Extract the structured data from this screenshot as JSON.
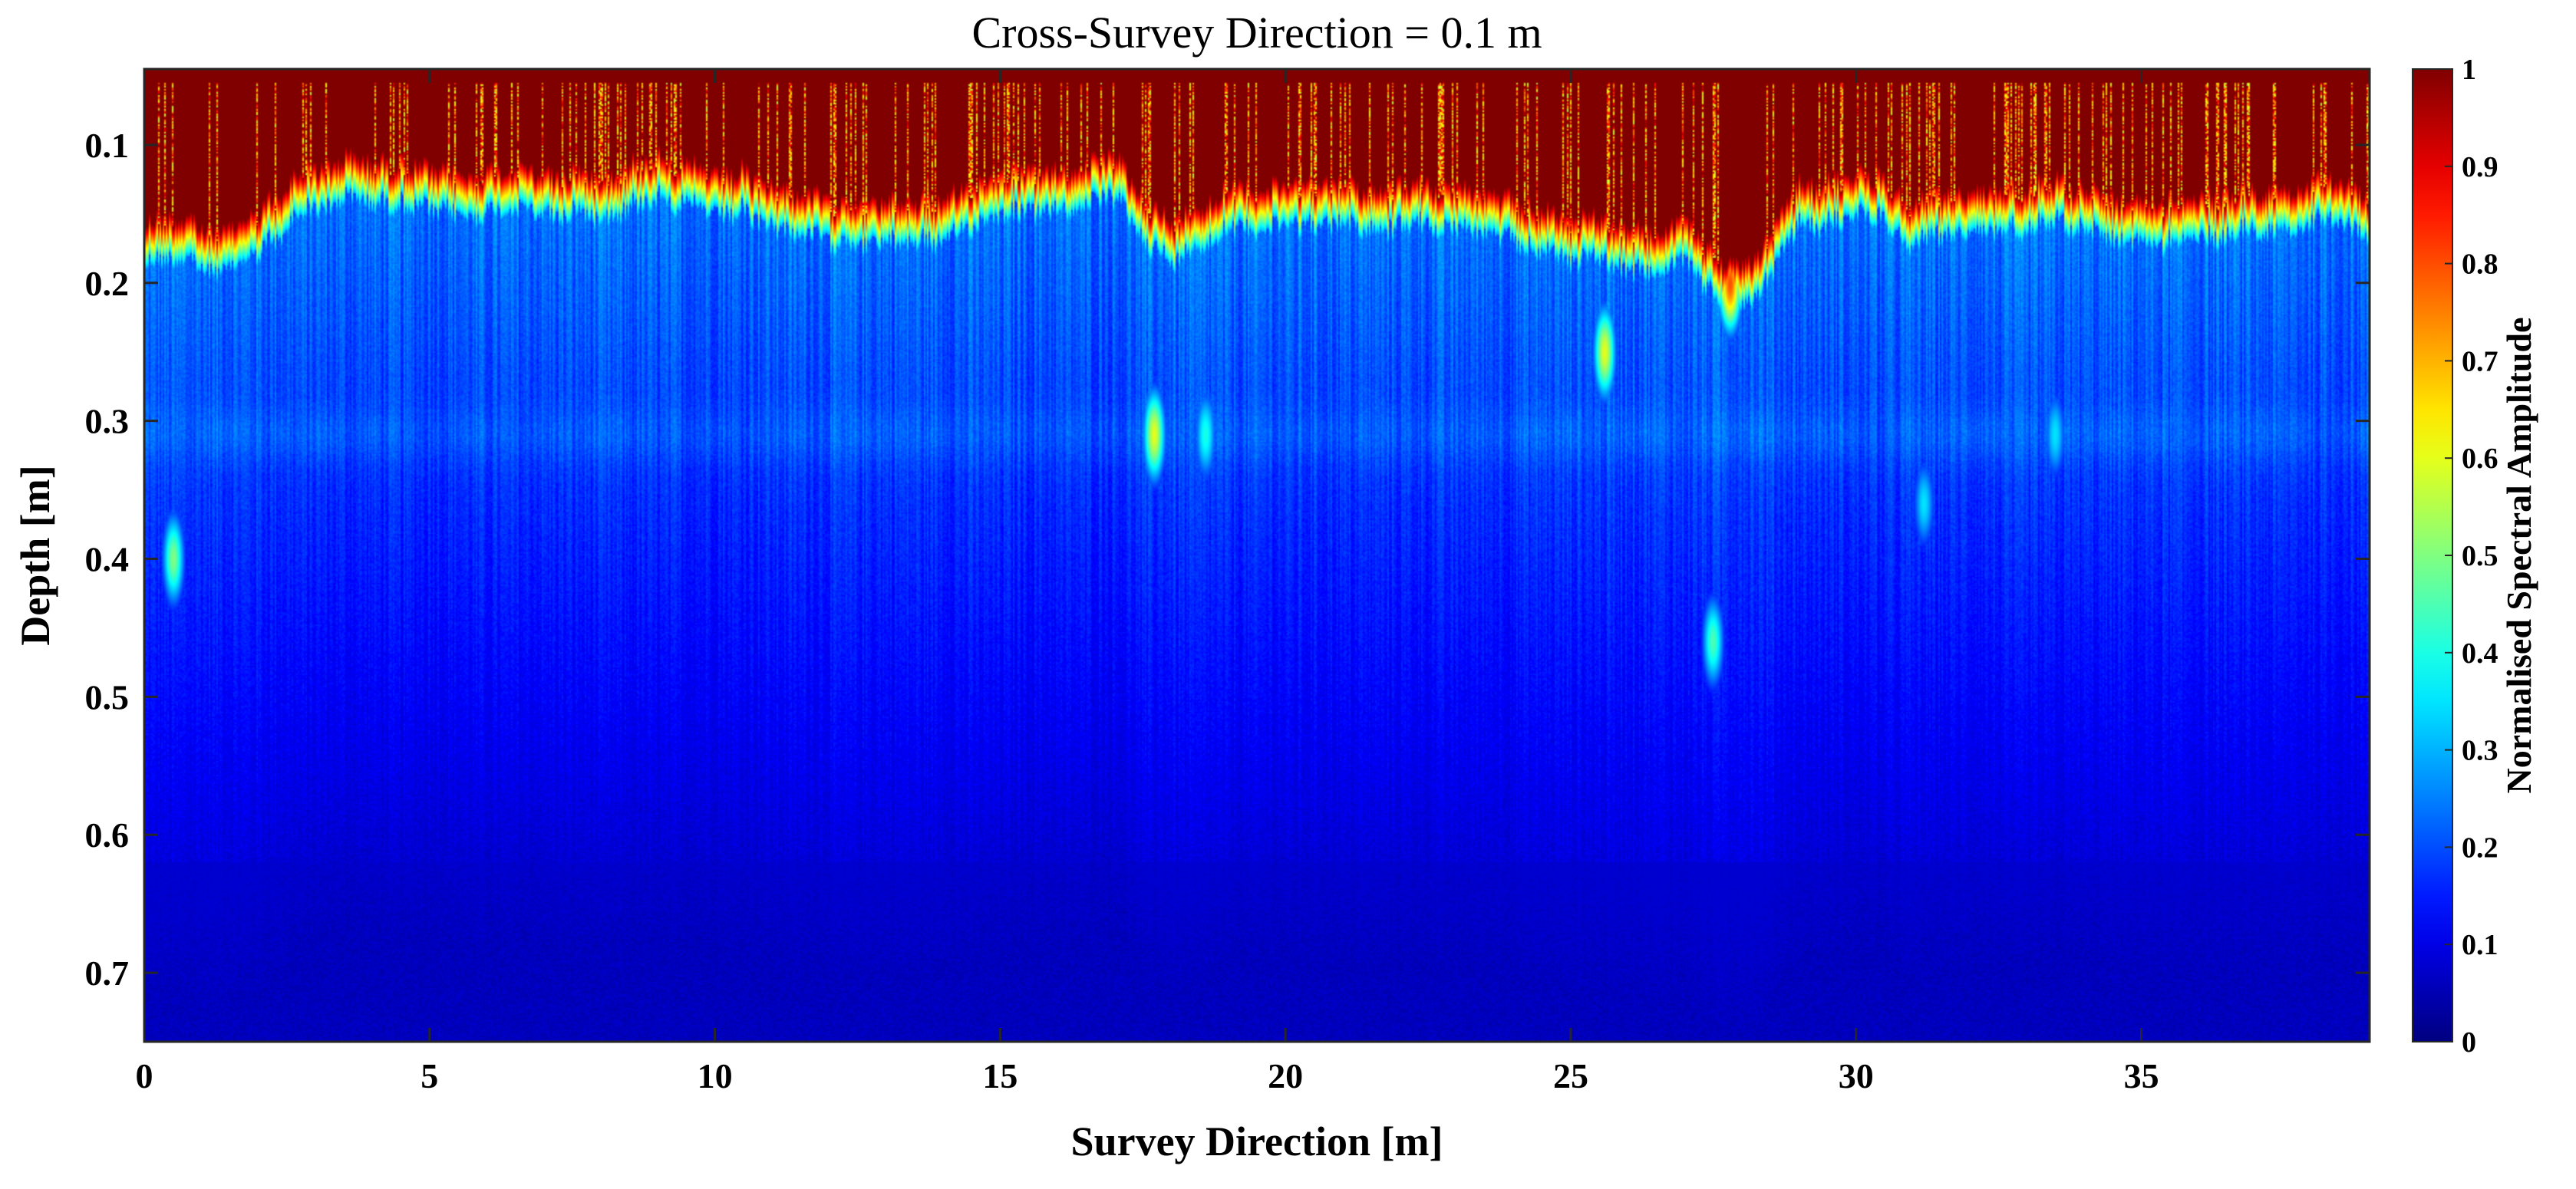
{
  "chart_data": {
    "type": "heatmap",
    "title": "Cross-Survey Direction = 0.1 m",
    "xlabel": "Survey Direction [m]",
    "ylabel": "Depth [m]",
    "xlim": [
      0,
      39
    ],
    "ylim": [
      0.045,
      0.75
    ],
    "y_direction": "reversed",
    "x_ticks": [
      0,
      5,
      10,
      15,
      20,
      25,
      30,
      35
    ],
    "x_tick_labels": [
      "0",
      "5",
      "10",
      "15",
      "20",
      "25",
      "30",
      "35"
    ],
    "y_ticks": [
      0.1,
      0.2,
      0.3,
      0.4,
      0.5,
      0.6,
      0.7
    ],
    "y_tick_labels": [
      "0.1",
      "0.2",
      "0.3",
      "0.4",
      "0.5",
      "0.6",
      "0.7"
    ],
    "colormap": "jet",
    "colorbar": {
      "label": "Normalised Spectral Amplitude",
      "range": [
        0,
        1
      ],
      "ticks": [
        0,
        0.1,
        0.2,
        0.3,
        0.4,
        0.5,
        0.6,
        0.7,
        0.8,
        0.9,
        1
      ],
      "tick_labels": [
        "0",
        "0.1",
        "0.2",
        "0.3",
        "0.4",
        "0.5",
        "0.6",
        "0.7",
        "0.8",
        "0.9",
        "1"
      ]
    },
    "surface_layer_bottom_depth": [
      [
        0,
        0.16
      ],
      [
        1,
        0.17
      ],
      [
        2,
        0.16
      ],
      [
        3,
        0.12
      ],
      [
        4,
        0.12
      ],
      [
        5,
        0.13
      ],
      [
        6,
        0.13
      ],
      [
        7,
        0.13
      ],
      [
        8,
        0.13
      ],
      [
        9,
        0.12
      ],
      [
        10,
        0.13
      ],
      [
        11,
        0.14
      ],
      [
        12,
        0.15
      ],
      [
        13,
        0.15
      ],
      [
        14,
        0.15
      ],
      [
        15,
        0.13
      ],
      [
        16,
        0.13
      ],
      [
        17,
        0.12
      ],
      [
        18,
        0.17
      ],
      [
        19,
        0.14
      ],
      [
        20,
        0.14
      ],
      [
        21,
        0.14
      ],
      [
        22,
        0.14
      ],
      [
        23,
        0.14
      ],
      [
        24,
        0.15
      ],
      [
        25,
        0.16
      ],
      [
        26,
        0.17
      ],
      [
        27,
        0.17
      ],
      [
        28,
        0.2
      ],
      [
        29,
        0.14
      ],
      [
        30,
        0.13
      ],
      [
        31,
        0.15
      ],
      [
        32,
        0.14
      ],
      [
        33,
        0.14
      ],
      [
        34,
        0.14
      ],
      [
        35,
        0.15
      ],
      [
        36,
        0.15
      ],
      [
        37,
        0.14
      ],
      [
        38,
        0.14
      ],
      [
        39,
        0.14
      ]
    ],
    "notable_features": [
      {
        "x": 17.7,
        "depth": 0.31,
        "amplitude": 0.6
      },
      {
        "x": 18.6,
        "depth": 0.31,
        "amplitude": 0.4
      },
      {
        "x": 27.5,
        "depth": 0.46,
        "amplitude": 0.45
      },
      {
        "x": 27.8,
        "depth": 0.2,
        "amplitude": 0.8
      },
      {
        "x": 25.6,
        "depth": 0.25,
        "amplitude": 0.6
      },
      {
        "x": 0.5,
        "depth": 0.4,
        "amplitude": 0.5
      },
      {
        "x": 33.5,
        "depth": 0.31,
        "amplitude": 0.35
      },
      {
        "x": 31.2,
        "depth": 0.36,
        "amplitude": 0.35
      }
    ]
  }
}
